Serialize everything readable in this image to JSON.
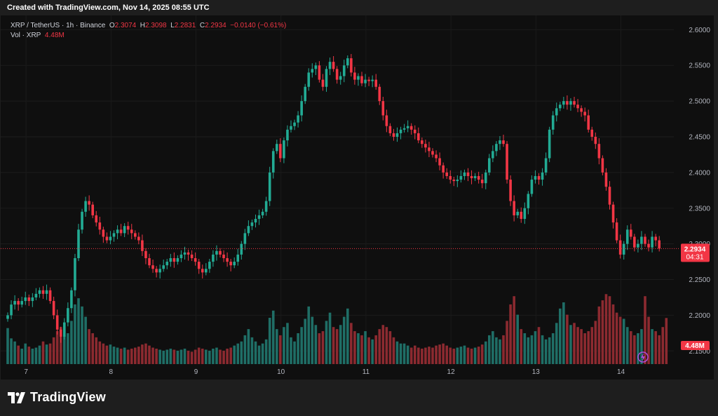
{
  "header": {
    "created_text": "Created with TradingView.com, Nov 14, 2025 08:55 UTC"
  },
  "legend": {
    "symbol": "XRP / TetherUS · 1h · Binance",
    "o_label": "O",
    "o_value": "2.3074",
    "h_label": "H",
    "h_value": "2.3098",
    "l_label": "L",
    "l_value": "2.2831",
    "c_label": "C",
    "c_value": "2.2934",
    "change": "−0.0140 (−0.61%)",
    "vol_label": "Vol · XRP",
    "vol_value": "4.48M"
  },
  "price_tag": {
    "price": "2.2934",
    "countdown": "04:31"
  },
  "volume_tag": "4.48M",
  "brand": {
    "name": "TradingView"
  },
  "colors": {
    "up": "#22ab94",
    "down": "#f23645",
    "up_vol": "#1f6e66",
    "down_vol": "#8c2a30",
    "bg": "#0f0f0f"
  },
  "chart_data": {
    "type": "candlestick",
    "interval": "1h",
    "ylim": [
      2.11,
      2.62
    ],
    "y_ticks": [
      "2.6000",
      "2.5500",
      "2.5000",
      "2.4500",
      "2.4000",
      "2.3500",
      "2.3000",
      "2.2500",
      "2.2000",
      "2.1500"
    ],
    "x_ticks": [
      {
        "label": "7",
        "index": 2
      },
      {
        "label": "8",
        "index": 26
      },
      {
        "label": "9",
        "index": 50
      },
      {
        "label": "10",
        "index": 74
      },
      {
        "label": "11",
        "index": 98
      },
      {
        "label": "12",
        "index": 122
      },
      {
        "label": "13",
        "index": 146
      },
      {
        "label": "14",
        "index": 170
      }
    ],
    "last_price": 2.2934,
    "volume_max": 7.5,
    "closes": [
      2.2,
      2.215,
      2.22,
      2.215,
      2.22,
      2.225,
      2.22,
      2.225,
      2.23,
      2.235,
      2.23,
      2.235,
      2.22,
      2.2,
      2.18,
      2.17,
      2.19,
      2.21,
      2.235,
      2.28,
      2.32,
      2.345,
      2.36,
      2.355,
      2.34,
      2.33,
      2.32,
      2.31,
      2.305,
      2.31,
      2.315,
      2.32,
      2.315,
      2.325,
      2.32,
      2.315,
      2.31,
      2.305,
      2.29,
      2.28,
      2.27,
      2.265,
      2.26,
      2.265,
      2.27,
      2.275,
      2.28,
      2.275,
      2.28,
      2.285,
      2.288,
      2.285,
      2.28,
      2.275,
      2.265,
      2.26,
      2.265,
      2.275,
      2.285,
      2.29,
      2.285,
      2.28,
      2.275,
      2.27,
      2.275,
      2.285,
      2.3,
      2.315,
      2.325,
      2.33,
      2.335,
      2.34,
      2.345,
      2.36,
      2.4,
      2.43,
      2.44,
      2.42,
      2.445,
      2.46,
      2.465,
      2.47,
      2.48,
      2.5,
      2.52,
      2.54,
      2.545,
      2.55,
      2.53,
      2.52,
      2.545,
      2.555,
      2.545,
      2.53,
      2.535,
      2.55,
      2.56,
      2.54,
      2.53,
      2.535,
      2.525,
      2.53,
      2.528,
      2.53,
      2.52,
      2.5,
      2.48,
      2.465,
      2.455,
      2.45,
      2.455,
      2.46,
      2.462,
      2.465,
      2.46,
      2.455,
      2.445,
      2.44,
      2.435,
      2.43,
      2.425,
      2.42,
      2.41,
      2.4,
      2.395,
      2.39,
      2.388,
      2.39,
      2.395,
      2.4,
      2.395,
      2.392,
      2.395,
      2.39,
      2.385,
      2.4,
      2.42,
      2.43,
      2.44,
      2.445,
      2.44,
      2.39,
      2.36,
      2.34,
      2.345,
      2.335,
      2.35,
      2.37,
      2.39,
      2.395,
      2.39,
      2.4,
      2.42,
      2.46,
      2.48,
      2.49,
      2.495,
      2.5,
      2.495,
      2.5,
      2.495,
      2.49,
      2.485,
      2.48,
      2.46,
      2.45,
      2.44,
      2.42,
      2.4,
      2.38,
      2.355,
      2.33,
      2.305,
      2.285,
      2.3,
      2.32,
      2.31,
      2.295,
      2.3,
      2.31,
      2.3,
      2.295,
      2.31,
      2.305,
      2.2934
    ],
    "volumes": [
      3.5,
      2.5,
      2.2,
      1.8,
      1.5,
      2.0,
      1.7,
      1.5,
      1.6,
      1.8,
      2.2,
      1.9,
      2.0,
      2.6,
      3.2,
      3.6,
      2.8,
      3.0,
      4.2,
      5.8,
      6.4,
      5.6,
      4.6,
      3.4,
      3.0,
      2.6,
      2.2,
      2.0,
      1.8,
      1.9,
      1.7,
      1.6,
      1.5,
      1.6,
      1.4,
      1.5,
      1.6,
      1.7,
      1.9,
      2.0,
      1.8,
      1.6,
      1.5,
      1.4,
      1.3,
      1.4,
      1.5,
      1.4,
      1.3,
      1.4,
      1.5,
      1.3,
      1.2,
      1.4,
      1.6,
      1.5,
      1.4,
      1.3,
      1.5,
      1.6,
      1.4,
      1.3,
      1.5,
      1.6,
      1.8,
      2.0,
      2.2,
      2.8,
      3.4,
      2.6,
      2.2,
      1.8,
      2.0,
      2.4,
      4.5,
      5.2,
      3.4,
      2.8,
      3.6,
      4.0,
      2.6,
      2.2,
      3.0,
      3.6,
      4.4,
      5.6,
      4.6,
      3.8,
      3.0,
      3.2,
      4.2,
      5.0,
      3.6,
      3.4,
      3.8,
      4.6,
      5.4,
      4.0,
      3.2,
      3.0,
      2.8,
      3.2,
      2.6,
      2.4,
      2.8,
      3.4,
      3.8,
      3.6,
      3.2,
      2.6,
      2.2,
      2.0,
      2.0,
      1.8,
      1.6,
      1.8,
      1.6,
      1.5,
      1.6,
      1.7,
      1.6,
      1.8,
      1.9,
      2.0,
      1.8,
      1.6,
      1.5,
      1.6,
      1.7,
      1.8,
      1.6,
      1.5,
      1.6,
      1.7,
      1.9,
      2.2,
      2.8,
      3.2,
      2.6,
      2.4,
      2.8,
      4.2,
      5.8,
      6.6,
      4.8,
      3.4,
      3.0,
      2.6,
      2.8,
      3.2,
      3.6,
      2.8,
      2.4,
      2.6,
      3.0,
      4.0,
      5.4,
      6.0,
      4.8,
      3.8,
      4.0,
      3.6,
      3.4,
      3.0,
      3.2,
      3.6,
      4.2,
      5.6,
      6.2,
      6.8,
      6.6,
      5.8,
      5.0,
      4.6,
      4.4,
      3.6,
      3.2,
      2.8,
      3.0,
      3.4,
      6.6,
      4.6,
      3.4,
      3.2,
      2.8,
      3.6,
      4.48
    ]
  }
}
